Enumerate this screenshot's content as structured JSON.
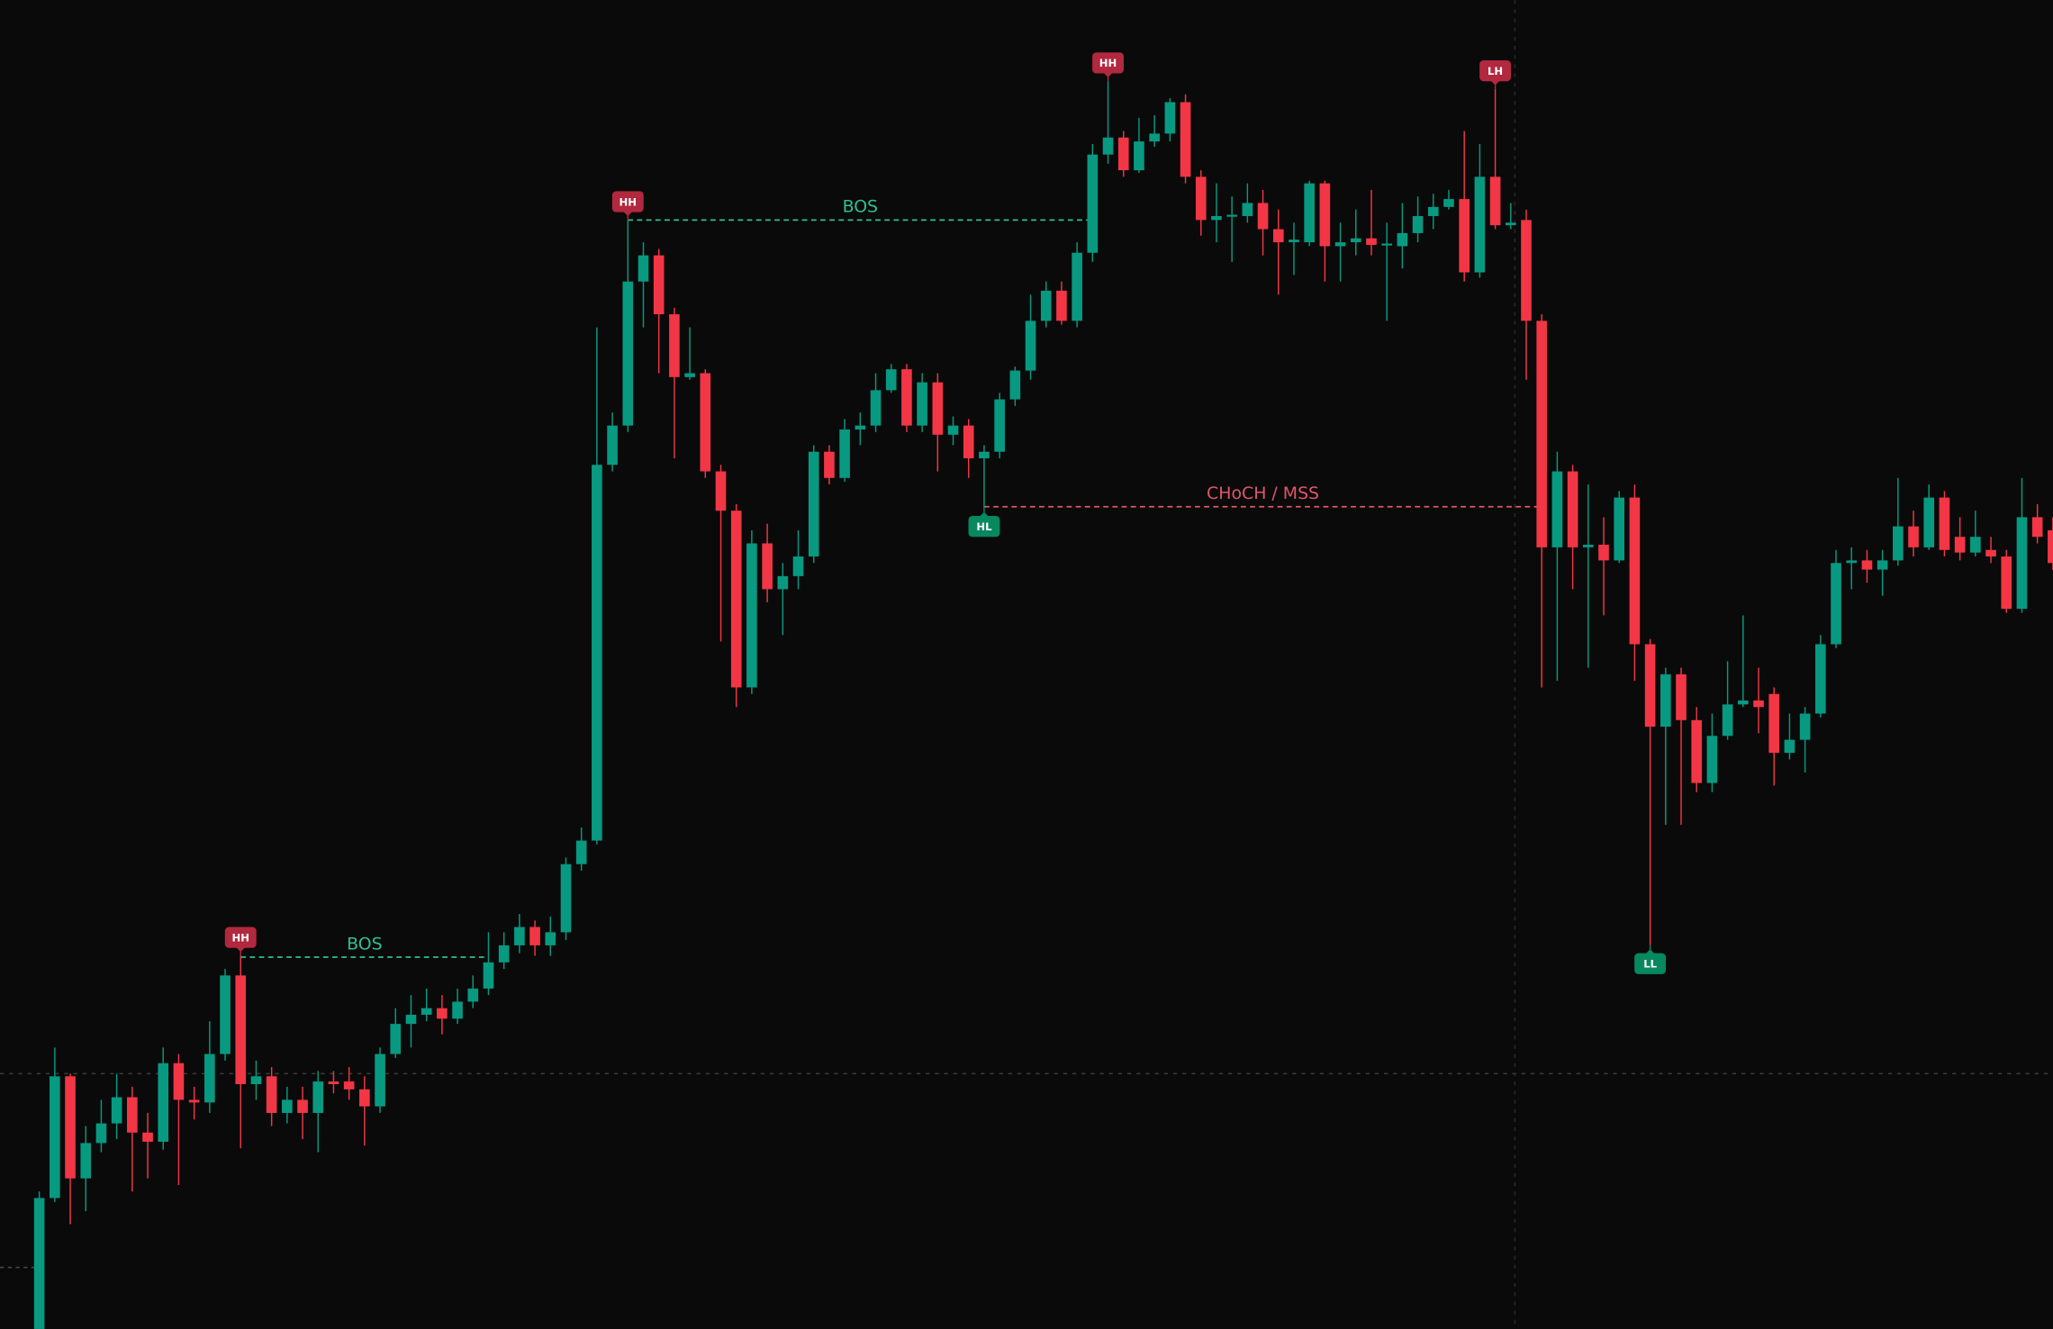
{
  "chart_data": {
    "type": "candlestick",
    "up_color": "#089981",
    "down_color": "#f23645",
    "ylim": [
      0,
      1015
    ],
    "candles": [
      [
        0,
        105,
        0,
        100
      ],
      [
        100,
        215,
        97,
        193
      ],
      [
        193,
        195,
        80,
        115
      ],
      [
        115,
        155,
        90,
        142
      ],
      [
        142,
        175,
        135,
        157
      ],
      [
        157,
        195,
        145,
        177
      ],
      [
        177,
        185,
        105,
        150
      ],
      [
        150,
        165,
        115,
        143
      ],
      [
        143,
        215,
        137,
        203
      ],
      [
        203,
        210,
        110,
        175
      ],
      [
        175,
        185,
        160,
        173
      ],
      [
        173,
        235,
        165,
        210
      ],
      [
        210,
        275,
        205,
        270
      ],
      [
        270,
        285,
        138,
        187
      ],
      [
        187,
        205,
        175,
        193
      ],
      [
        193,
        200,
        155,
        165
      ],
      [
        165,
        185,
        157,
        175
      ],
      [
        175,
        185,
        145,
        165
      ],
      [
        165,
        197,
        135,
        189
      ],
      [
        189,
        197,
        180,
        187
      ],
      [
        189,
        200,
        175,
        183
      ],
      [
        183,
        193,
        140,
        170
      ],
      [
        170,
        215,
        165,
        210
      ],
      [
        210,
        245,
        207,
        233
      ],
      [
        233,
        255,
        215,
        240
      ],
      [
        240,
        260,
        235,
        245
      ],
      [
        245,
        255,
        225,
        237
      ],
      [
        237,
        260,
        233,
        250
      ],
      [
        250,
        270,
        245,
        260
      ],
      [
        260,
        303,
        255,
        280
      ],
      [
        280,
        303,
        275,
        293
      ],
      [
        293,
        317,
        287,
        307
      ],
      [
        307,
        312,
        285,
        293
      ],
      [
        293,
        315,
        285,
        303
      ],
      [
        303,
        360,
        297,
        355
      ],
      [
        355,
        383,
        350,
        373
      ],
      [
        373,
        765,
        370,
        660
      ],
      [
        660,
        700,
        655,
        690
      ],
      [
        690,
        847,
        685,
        800
      ],
      [
        800,
        830,
        765,
        820
      ],
      [
        820,
        825,
        730,
        775
      ],
      [
        775,
        780,
        665,
        727
      ],
      [
        727,
        765,
        725,
        730
      ],
      [
        730,
        733,
        650,
        655
      ],
      [
        655,
        660,
        525,
        625
      ],
      [
        625,
        630,
        475,
        490
      ],
      [
        490,
        610,
        485,
        600
      ],
      [
        600,
        615,
        555,
        565
      ],
      [
        565,
        585,
        530,
        575
      ],
      [
        575,
        610,
        565,
        590
      ],
      [
        590,
        675,
        585,
        670
      ],
      [
        670,
        675,
        645,
        650
      ],
      [
        650,
        695,
        647,
        687
      ],
      [
        687,
        700,
        675,
        690
      ],
      [
        690,
        730,
        685,
        717
      ],
      [
        717,
        737,
        715,
        733
      ],
      [
        733,
        737,
        685,
        690
      ],
      [
        690,
        730,
        685,
        723
      ],
      [
        723,
        730,
        655,
        683
      ],
      [
        683,
        697,
        675,
        690
      ],
      [
        690,
        695,
        650,
        665
      ],
      [
        665,
        675,
        627,
        670
      ],
      [
        670,
        715,
        665,
        710
      ],
      [
        710,
        735,
        705,
        732
      ],
      [
        732,
        790,
        725,
        770
      ],
      [
        770,
        800,
        765,
        793
      ],
      [
        793,
        800,
        767,
        770
      ],
      [
        770,
        830,
        765,
        822
      ],
      [
        822,
        905,
        815,
        897
      ],
      [
        897,
        953,
        890,
        910
      ],
      [
        910,
        915,
        880,
        885
      ],
      [
        885,
        925,
        883,
        907
      ],
      [
        907,
        927,
        903,
        913
      ],
      [
        913,
        940,
        907,
        937
      ],
      [
        937,
        943,
        875,
        880
      ],
      [
        880,
        885,
        835,
        847
      ],
      [
        847,
        875,
        830,
        850
      ],
      [
        850,
        865,
        815,
        851
      ],
      [
        850,
        875,
        845,
        860
      ],
      [
        860,
        870,
        820,
        840
      ],
      [
        840,
        855,
        790,
        830
      ],
      [
        830,
        845,
        805,
        832
      ],
      [
        830,
        877,
        827,
        875
      ],
      [
        875,
        877,
        800,
        827
      ],
      [
        827,
        845,
        800,
        830
      ],
      [
        830,
        855,
        820,
        833
      ],
      [
        833,
        870,
        820,
        828
      ],
      [
        828,
        845,
        770,
        829
      ],
      [
        827,
        860,
        810,
        837
      ],
      [
        837,
        865,
        830,
        850
      ],
      [
        850,
        867,
        840,
        857
      ],
      [
        857,
        870,
        855,
        863
      ],
      [
        863,
        915,
        800,
        807
      ],
      [
        807,
        905,
        803,
        880
      ],
      [
        880,
        947,
        840,
        843
      ],
      [
        843,
        860,
        840,
        845
      ],
      [
        847,
        855,
        725,
        770
      ],
      [
        770,
        775,
        490,
        597
      ],
      [
        597,
        670,
        495,
        655
      ],
      [
        655,
        660,
        565,
        597
      ],
      [
        597,
        645,
        505,
        599
      ],
      [
        599,
        620,
        545,
        587
      ],
      [
        587,
        640,
        585,
        635
      ],
      [
        635,
        645,
        495,
        523
      ],
      [
        523,
        527,
        293,
        460
      ],
      [
        460,
        505,
        385,
        500
      ],
      [
        500,
        505,
        385,
        465
      ],
      [
        465,
        475,
        410,
        417
      ],
      [
        417,
        470,
        410,
        453
      ],
      [
        453,
        510,
        450,
        477
      ],
      [
        477,
        545,
        475,
        480
      ],
      [
        480,
        505,
        455,
        475
      ],
      [
        485,
        490,
        415,
        440
      ],
      [
        440,
        470,
        435,
        450
      ],
      [
        450,
        475,
        425,
        470
      ],
      [
        470,
        530,
        467,
        523
      ],
      [
        523,
        595,
        520,
        585
      ],
      [
        585,
        597,
        565,
        587
      ],
      [
        587,
        595,
        570,
        580
      ],
      [
        580,
        595,
        560,
        587
      ],
      [
        587,
        650,
        583,
        613
      ],
      [
        613,
        625,
        590,
        597
      ],
      [
        597,
        645,
        595,
        635
      ],
      [
        635,
        640,
        590,
        595
      ],
      [
        605,
        620,
        587,
        593
      ],
      [
        593,
        625,
        590,
        605
      ],
      [
        595,
        605,
        585,
        590
      ],
      [
        590,
        595,
        547,
        550
      ],
      [
        550,
        650,
        547,
        620
      ],
      [
        620,
        630,
        600,
        605
      ],
      [
        610,
        620,
        580,
        585
      ]
    ],
    "markers": [
      {
        "label": "HH",
        "index": 13,
        "price": 285,
        "side": "above",
        "color": "#b2283f"
      },
      {
        "label": "HH",
        "index": 38,
        "price": 847,
        "side": "above",
        "color": "#b2283f"
      },
      {
        "label": "HL",
        "index": 61,
        "price": 627,
        "side": "below",
        "color": "#07885e"
      },
      {
        "label": "HH",
        "index": 69,
        "price": 953,
        "side": "above",
        "color": "#b2283f"
      },
      {
        "label": "LH",
        "index": 94,
        "price": 947,
        "side": "above",
        "color": "#b2283f"
      },
      {
        "label": "LL",
        "index": 104,
        "price": 293,
        "side": "below",
        "color": "#07885e"
      }
    ],
    "levels": [
      {
        "label": "BOS",
        "from": 13,
        "to": 29,
        "price": 284,
        "color": "#2fbf8f"
      },
      {
        "label": "BOS",
        "from": 38,
        "to": 68,
        "price": 847,
        "color": "#2fbf8f"
      },
      {
        "label": "CHoCH / MSS",
        "from": 61,
        "to": 97,
        "price": 628,
        "color": "#e0566b"
      }
    ]
  }
}
